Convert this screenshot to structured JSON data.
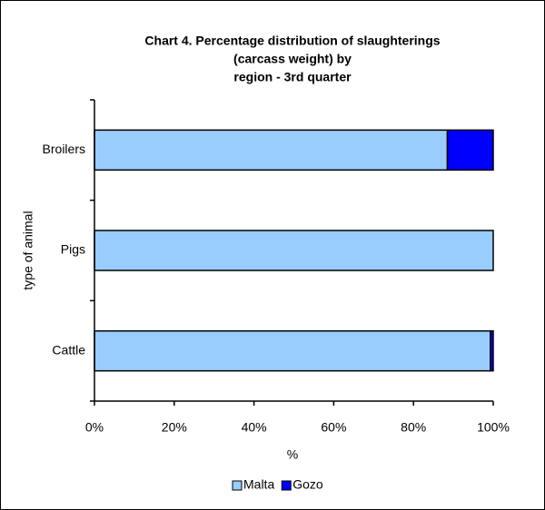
{
  "chart_data": {
    "type": "stacked_bar_horizontal",
    "title": [
      "Chart 4.  Percentage distribution of slaughterings",
      "(carcass weight) by",
      "region - 3rd quarter"
    ],
    "categories": [
      "Broilers",
      "Pigs",
      "Cattle"
    ],
    "series": [
      {
        "name": "Malta",
        "color": "#99ccff",
        "values": [
          88.5,
          100,
          99.3
        ]
      },
      {
        "name": "Gozo",
        "color": "#0000ff",
        "values": [
          11.5,
          0,
          0.7
        ]
      }
    ],
    "xlim": [
      0,
      100
    ],
    "xticks": [
      {
        "value": 0,
        "label": "0%"
      },
      {
        "value": 20,
        "label": "20%"
      },
      {
        "value": 40,
        "label": "40%"
      },
      {
        "value": 60,
        "label": "60%"
      },
      {
        "value": 80,
        "label": "80%"
      },
      {
        "value": 100,
        "label": "100%"
      }
    ],
    "xlabel": "%",
    "ylabel": "type of animal",
    "legend": "bottom"
  }
}
